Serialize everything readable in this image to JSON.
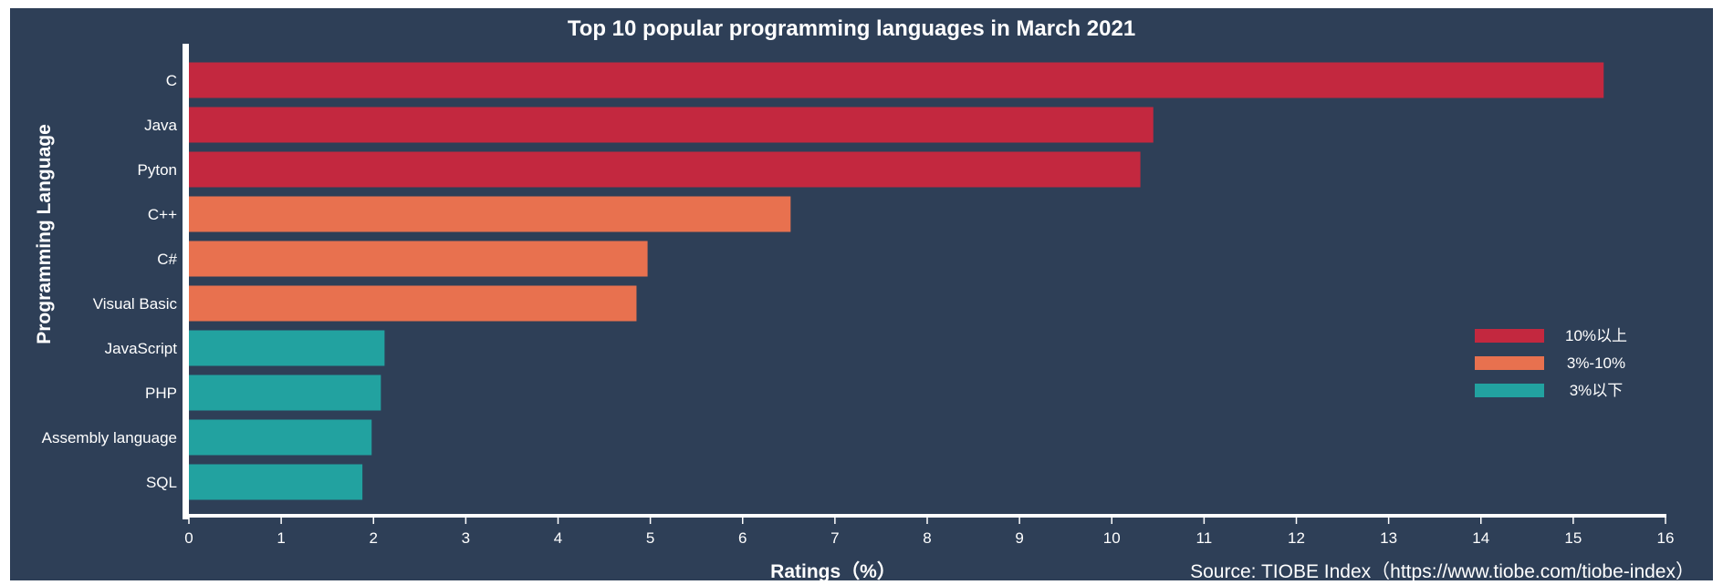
{
  "chart_data": {
    "type": "bar",
    "orientation": "horizontal",
    "title": "Top 10 popular programming languages in March 2021",
    "xlabel": "Ratings（%）",
    "ylabel": "Programming Language",
    "source": "Source: TIOBE Index（https://www.tiobe.com/tiobe-index）",
    "categories": [
      "C",
      "Java",
      "Pyton",
      "C++",
      "C#",
      "Visual Basic",
      "JavaScript",
      "PHP",
      "Assembly language",
      "SQL"
    ],
    "values": [
      15.33,
      10.45,
      10.31,
      6.52,
      4.97,
      4.85,
      2.12,
      2.08,
      1.98,
      1.88
    ],
    "groups": [
      0,
      0,
      0,
      1,
      1,
      1,
      2,
      2,
      2,
      2
    ],
    "xlim": [
      0,
      16
    ],
    "xticks": [
      0,
      1,
      2,
      3,
      4,
      5,
      6,
      7,
      8,
      9,
      10,
      11,
      12,
      13,
      14,
      15,
      16
    ],
    "grid": false,
    "legend": {
      "placement": "right",
      "entries": [
        {
          "label": "10%以上",
          "color": "#c3283f"
        },
        {
          "label": "3%-10%",
          "color": "#e8714f"
        },
        {
          "label": "3%以下",
          "color": "#22a2a0"
        }
      ]
    },
    "colors": {
      "background": "#2e3f57",
      "axis": "#ffffff",
      "text": "#ffffff"
    }
  }
}
